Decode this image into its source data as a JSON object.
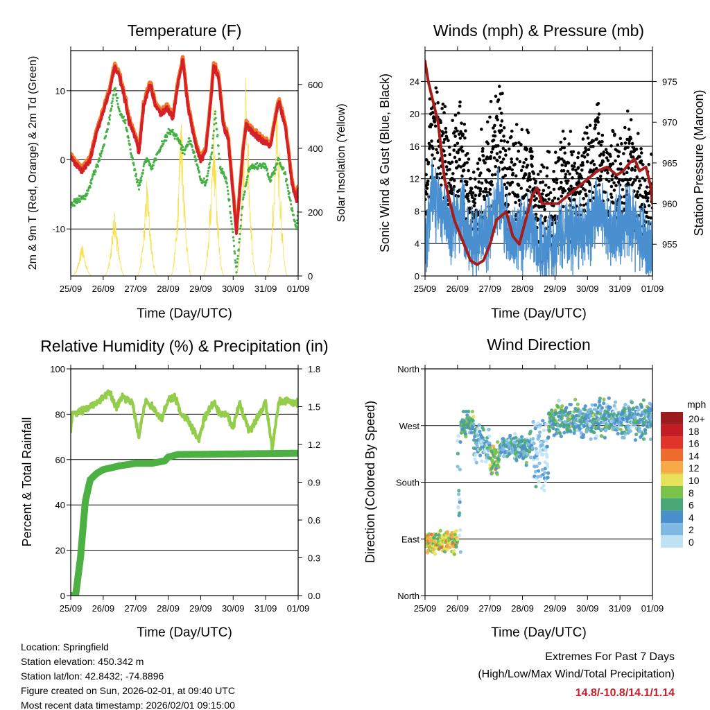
{
  "chart_data": [
    {
      "type": "line",
      "title": "Temperature (F)",
      "xlabel": "Time (Day/UTC)",
      "ylabel": "2m & 9m T (Red, Orange) & 2m Td (Green)",
      "ylabel_right": "Solar Insolation (Yellow)",
      "x_ticks": [
        "25/09",
        "26/09",
        "27/09",
        "28/09",
        "29/09",
        "30/09",
        "31/09",
        "01/09"
      ],
      "ylim": [
        -16.8,
        15.8
      ],
      "y_ticks": [
        -10,
        0,
        10
      ],
      "ylim_right": [
        0,
        706
      ],
      "y_ticks_right": [
        0,
        200,
        400,
        600
      ],
      "grid": true,
      "series": [
        {
          "name": "2m T",
          "color": "#d42027",
          "points": [
            [
              0,
              0.5
            ],
            [
              0.1,
              -0.5
            ],
            [
              0.35,
              -1.5
            ],
            [
              0.6,
              0
            ],
            [
              0.8,
              4
            ],
            [
              1.0,
              7
            ],
            [
              1.2,
              10
            ],
            [
              1.35,
              13.5
            ],
            [
              1.5,
              12
            ],
            [
              1.7,
              8
            ],
            [
              1.8,
              5.5
            ],
            [
              2.0,
              3
            ],
            [
              2.1,
              1
            ],
            [
              2.25,
              8
            ],
            [
              2.45,
              11
            ],
            [
              2.6,
              8
            ],
            [
              2.8,
              6.5
            ],
            [
              2.95,
              7.5
            ],
            [
              3.15,
              6
            ],
            [
              3.3,
              11
            ],
            [
              3.45,
              14.5
            ],
            [
              3.6,
              8
            ],
            [
              3.85,
              2
            ],
            [
              4.0,
              0
            ],
            [
              4.15,
              1
            ],
            [
              4.3,
              8
            ],
            [
              4.4,
              13.5
            ],
            [
              4.55,
              12
            ],
            [
              4.7,
              5
            ],
            [
              4.85,
              3
            ],
            [
              5.1,
              -10.5
            ],
            [
              5.3,
              1
            ],
            [
              5.4,
              5
            ],
            [
              5.6,
              4
            ],
            [
              5.8,
              3
            ],
            [
              6.0,
              2.5
            ],
            [
              6.15,
              2
            ],
            [
              6.3,
              6
            ],
            [
              6.4,
              8.5
            ],
            [
              6.6,
              5
            ],
            [
              6.8,
              -3
            ],
            [
              6.95,
              -6
            ],
            [
              7.0,
              -4
            ]
          ]
        },
        {
          "name": "9m T",
          "color": "#f47a2a",
          "offset": 0.4
        },
        {
          "name": "2m Td",
          "color": "#44b045",
          "points": [
            [
              0,
              -6.5
            ],
            [
              0.2,
              -6
            ],
            [
              0.5,
              -5
            ],
            [
              0.8,
              -1
            ],
            [
              1.0,
              2
            ],
            [
              1.2,
              6
            ],
            [
              1.35,
              10.5
            ],
            [
              1.5,
              7
            ],
            [
              1.7,
              5
            ],
            [
              1.85,
              1
            ],
            [
              2.0,
              -2
            ],
            [
              2.1,
              -4
            ],
            [
              2.3,
              0
            ],
            [
              2.5,
              -1
            ],
            [
              2.7,
              1
            ],
            [
              3.0,
              4
            ],
            [
              3.15,
              4
            ],
            [
              3.3,
              3
            ],
            [
              3.5,
              1
            ],
            [
              3.65,
              3
            ],
            [
              3.85,
              0
            ],
            [
              4.0,
              -3
            ],
            [
              4.15,
              -3.5
            ],
            [
              4.35,
              1
            ],
            [
              4.45,
              7
            ],
            [
              4.6,
              -1
            ],
            [
              4.8,
              -3
            ],
            [
              5.0,
              -11
            ],
            [
              5.1,
              -16
            ],
            [
              5.3,
              -6
            ],
            [
              5.5,
              -1
            ],
            [
              5.8,
              -0.8
            ],
            [
              6.0,
              -1
            ],
            [
              6.15,
              -3
            ],
            [
              6.4,
              0
            ],
            [
              6.6,
              -2
            ],
            [
              6.8,
              -7
            ],
            [
              6.95,
              -10
            ],
            [
              7.0,
              -7
            ]
          ]
        },
        {
          "name": "Solar Insolation",
          "color": "#f7e04a",
          "axis": "right",
          "peaks": [
            [
              0.35,
              110
            ],
            [
              1.35,
              230
            ],
            [
              2.35,
              330
            ],
            [
              3.4,
              580
            ],
            [
              4.4,
              540
            ],
            [
              5.4,
              700
            ],
            [
              6.35,
              620
            ]
          ]
        }
      ]
    },
    {
      "type": "scatter",
      "title": "Winds (mph) & Pressure (mb)",
      "xlabel": "Time (Day/UTC)",
      "ylabel": "Sonic Wind & Gust (Blue, Black)",
      "ylabel_right": "Station Pressure (Maroon)",
      "x_ticks": [
        "25/09",
        "26/09",
        "27/09",
        "28/09",
        "29/09",
        "30/09",
        "31/09",
        "01/09"
      ],
      "ylim": [
        0,
        27.8
      ],
      "y_ticks": [
        0,
        4,
        8,
        12,
        16,
        20,
        24
      ],
      "ylim_right": [
        951.1,
        978.8
      ],
      "y_ticks_right": [
        955,
        960,
        965,
        970,
        975
      ],
      "grid": true,
      "series": [
        {
          "name": "Sonic Wind",
          "color": "#4a90d0",
          "points": [
            [
              0,
              3
            ],
            [
              0.2,
              10
            ],
            [
              0.5,
              8
            ],
            [
              0.8,
              6
            ],
            [
              1.1,
              8
            ],
            [
              1.5,
              3
            ],
            [
              1.7,
              5
            ],
            [
              2.0,
              6
            ],
            [
              2.3,
              10
            ],
            [
              2.5,
              5
            ],
            [
              3.0,
              5
            ],
            [
              3.2,
              7
            ],
            [
              3.5,
              3
            ],
            [
              4.0,
              4
            ],
            [
              4.3,
              6
            ],
            [
              4.6,
              5
            ],
            [
              5.0,
              6
            ],
            [
              5.3,
              8
            ],
            [
              5.7,
              5
            ],
            [
              6.0,
              6
            ],
            [
              6.3,
              7
            ],
            [
              6.6,
              5
            ],
            [
              7.0,
              3
            ]
          ]
        },
        {
          "name": "Gust",
          "color": "#000000"
        },
        {
          "name": "Station Pressure",
          "color": "#a51c1c",
          "axis": "right",
          "points": [
            [
              0,
              977.5
            ],
            [
              0.1,
              975
            ],
            [
              0.4,
              970
            ],
            [
              0.6,
              963
            ],
            [
              0.9,
              958
            ],
            [
              1.2,
              955
            ],
            [
              1.4,
              953
            ],
            [
              1.6,
              952.5
            ],
            [
              1.8,
              953
            ],
            [
              2.0,
              955
            ],
            [
              2.2,
              958
            ],
            [
              2.5,
              959
            ],
            [
              2.7,
              956
            ],
            [
              2.9,
              955
            ],
            [
              3.1,
              958
            ],
            [
              3.3,
              961
            ],
            [
              3.45,
              962
            ],
            [
              3.6,
              960
            ],
            [
              3.8,
              960
            ],
            [
              4.1,
              960
            ],
            [
              4.4,
              961
            ],
            [
              4.7,
              962
            ],
            [
              5.0,
              963
            ],
            [
              5.3,
              964
            ],
            [
              5.6,
              964.5
            ],
            [
              5.9,
              963.5
            ],
            [
              6.1,
              964
            ],
            [
              6.3,
              965
            ],
            [
              6.45,
              965.5
            ],
            [
              6.6,
              964
            ],
            [
              6.8,
              964.5
            ],
            [
              6.95,
              962
            ],
            [
              7.0,
              960
            ]
          ]
        }
      ]
    },
    {
      "type": "line",
      "title": "Relative Humidity (%) & Precipitation (in)",
      "xlabel": "Time (Day/UTC)",
      "ylabel": "Percent & Total Rainfall",
      "x_ticks": [
        "25/09",
        "26/09",
        "27/09",
        "28/09",
        "29/09",
        "30/09",
        "31/09",
        "01/09"
      ],
      "ylim": [
        0,
        100
      ],
      "y_ticks": [
        0,
        20,
        40,
        60,
        80,
        100
      ],
      "ylim_right": [
        0,
        1.8
      ],
      "y_ticks_right": [
        "0.0",
        "0.3",
        "0.6",
        "0.9",
        "1.2",
        "1.5",
        "1.8"
      ],
      "grid": true,
      "series": [
        {
          "name": "Relative Humidity",
          "color": "#94cc4c",
          "points": [
            [
              0,
              72
            ],
            [
              0.05,
              80
            ],
            [
              0.4,
              82
            ],
            [
              0.8,
              85
            ],
            [
              1.2,
              90
            ],
            [
              1.4,
              83
            ],
            [
              1.6,
              88
            ],
            [
              1.9,
              85
            ],
            [
              2.1,
              70
            ],
            [
              2.3,
              86
            ],
            [
              2.5,
              83
            ],
            [
              2.8,
              78
            ],
            [
              3.0,
              86
            ],
            [
              3.2,
              88
            ],
            [
              3.4,
              80
            ],
            [
              3.6,
              78
            ],
            [
              3.8,
              72
            ],
            [
              3.95,
              68
            ],
            [
              4.1,
              78
            ],
            [
              4.4,
              85
            ],
            [
              4.6,
              80
            ],
            [
              4.8,
              80
            ],
            [
              5.0,
              74
            ],
            [
              5.2,
              85
            ],
            [
              5.5,
              72
            ],
            [
              5.8,
              80
            ],
            [
              6.0,
              85
            ],
            [
              6.2,
              65
            ],
            [
              6.4,
              85
            ],
            [
              6.6,
              86
            ],
            [
              7.0,
              85
            ]
          ]
        },
        {
          "name": "Total Precipitation",
          "color": "#4cb043",
          "axis": "right",
          "points": [
            [
              0,
              0
            ],
            [
              0.15,
              0
            ],
            [
              0.3,
              0.3
            ],
            [
              0.45,
              0.75
            ],
            [
              0.6,
              0.92
            ],
            [
              0.8,
              0.97
            ],
            [
              1.0,
              1.0
            ],
            [
              1.5,
              1.03
            ],
            [
              2.0,
              1.05
            ],
            [
              2.5,
              1.05
            ],
            [
              2.9,
              1.07
            ],
            [
              3.0,
              1.1
            ],
            [
              3.3,
              1.12
            ],
            [
              7.0,
              1.13
            ]
          ]
        }
      ]
    },
    {
      "type": "scatter",
      "title": "Wind Direction",
      "xlabel": "Time (Day/UTC)",
      "ylabel": "Direction (Colored By Speed)",
      "x_ticks": [
        "25/09",
        "26/09",
        "27/09",
        "28/09",
        "29/09",
        "30/09",
        "31/09",
        "01/09"
      ],
      "ylim": [
        0,
        360
      ],
      "y_ticks": [
        0,
        90,
        180,
        270,
        360
      ],
      "y_tick_labels": [
        "North",
        "East",
        "South",
        "West",
        "North"
      ],
      "grid": true,
      "segments": [
        {
          "from": 0,
          "to": 1.0,
          "dir": 85,
          "spread": 12,
          "speed": 11
        },
        {
          "from": 1.0,
          "to": 1.1,
          "dir": 160,
          "spread": 60,
          "speed": 3
        },
        {
          "from": 1.1,
          "to": 1.5,
          "dir": 275,
          "spread": 18,
          "speed": 7
        },
        {
          "from": 1.5,
          "to": 2.0,
          "dir": 240,
          "spread": 20,
          "speed": 4
        },
        {
          "from": 2.0,
          "to": 2.3,
          "dir": 215,
          "spread": 18,
          "speed": 9
        },
        {
          "from": 2.3,
          "to": 2.8,
          "dir": 235,
          "spread": 15,
          "speed": 4
        },
        {
          "from": 2.8,
          "to": 3.3,
          "dir": 235,
          "spread": 18,
          "speed": 6
        },
        {
          "from": 3.3,
          "to": 3.8,
          "dir": 230,
          "spread": 40,
          "speed": 2
        },
        {
          "from": 3.8,
          "to": 4.6,
          "dir": 280,
          "spread": 18,
          "speed": 6
        },
        {
          "from": 4.6,
          "to": 7.0,
          "dir": 280,
          "spread": 20,
          "speed": 5
        }
      ],
      "colorbar": {
        "title": "mph",
        "labels": [
          "20+",
          "18",
          "16",
          "14",
          "12",
          "10",
          "8",
          "6",
          "4",
          "2",
          "0"
        ],
        "colors": [
          "#9b1a1d",
          "#c41c24",
          "#e0332a",
          "#ef6a2d",
          "#f5a947",
          "#e6e35a",
          "#7bc24a",
          "#4aa878",
          "#4a90cc",
          "#7eb8e3",
          "#bfe3f5"
        ]
      }
    }
  ],
  "footer": {
    "location": "Location: Springfield",
    "elevation": "Station elevation: 450.342 m",
    "latlon": "Station lat/lon: 42.8432; -74.8896",
    "created": "Figure created on Sun, 2026-02-01, at 09:40 UTC",
    "recent": "Most recent data timestamp: 2026/02/01 09:15:00"
  },
  "extremes": {
    "line1": "Extremes For Past 7 Days",
    "line2": "(High/Low/Max Wind/Total Precipitation)",
    "values": "14.8/-10.8/14.1/1.14"
  }
}
